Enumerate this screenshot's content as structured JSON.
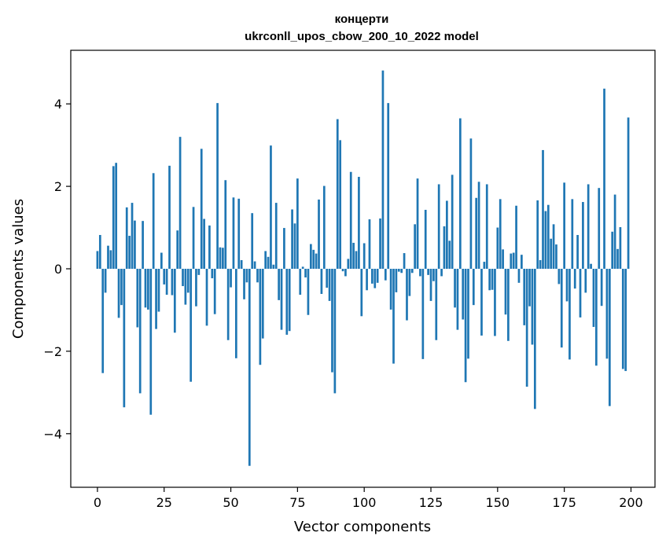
{
  "chart_data": {
    "type": "bar",
    "title": "концерти",
    "subtitle": "ukrconll_upos_cbow_200_10_2022 model",
    "xlabel": "Vector components",
    "ylabel": "Components values",
    "xlim": [
      -10,
      209
    ],
    "ylim": [
      -5.3,
      5.3
    ],
    "xticks": [
      0,
      25,
      50,
      75,
      100,
      125,
      150,
      175,
      200
    ],
    "yticks": [
      -4,
      -2,
      0,
      2,
      4
    ],
    "xtick_labels": [
      "0",
      "25",
      "50",
      "75",
      "100",
      "125",
      "150",
      "175",
      "200"
    ],
    "ytick_labels": [
      "−4",
      "−2",
      "0",
      "2",
      "4"
    ],
    "grid": false,
    "bar_color": "#1f77b4",
    "values": [
      0.43,
      0.82,
      -2.53,
      -0.58,
      0.56,
      0.45,
      2.49,
      2.57,
      -1.19,
      -0.88,
      -3.36,
      1.49,
      0.8,
      1.6,
      1.17,
      -1.42,
      -3.02,
      1.16,
      -0.94,
      -0.99,
      -3.54,
      2.32,
      -1.46,
      -1.04,
      0.39,
      -0.38,
      -0.63,
      2.5,
      -0.64,
      -1.55,
      0.93,
      3.2,
      -0.42,
      -0.87,
      -0.58,
      -2.74,
      1.5,
      -0.91,
      -0.15,
      2.91,
      1.21,
      -1.38,
      1.05,
      -0.23,
      -1.1,
      4.02,
      0.52,
      0.51,
      2.15,
      -1.73,
      -0.45,
      1.73,
      -2.17,
      1.7,
      0.21,
      -0.74,
      -0.33,
      -4.78,
      1.35,
      0.18,
      -0.33,
      -2.33,
      -1.69,
      0.43,
      0.29,
      2.99,
      0.1,
      1.6,
      -0.76,
      -1.48,
      0.99,
      -1.6,
      -1.51,
      1.44,
      1.1,
      2.19,
      -0.63,
      0.05,
      -0.21,
      -1.12,
      0.6,
      0.46,
      0.37,
      1.68,
      -0.61,
      2.01,
      -0.46,
      -0.78,
      -2.51,
      -3.02,
      3.63,
      3.12,
      -0.06,
      -0.18,
      0.24,
      2.35,
      0.63,
      0.43,
      2.23,
      -1.15,
      0.62,
      -0.52,
      1.2,
      -0.36,
      -0.47,
      -0.34,
      1.22,
      4.81,
      -0.28,
      4.02,
      -0.99,
      -2.3,
      -0.57,
      -0.07,
      -0.1,
      0.38,
      -1.25,
      -0.66,
      -0.1,
      1.08,
      2.19,
      -0.18,
      -2.19,
      1.43,
      -0.15,
      -0.78,
      -0.3,
      -1.73,
      2.05,
      -0.18,
      1.03,
      1.65,
      0.68,
      2.28,
      -0.94,
      -1.48,
      3.65,
      -1.23,
      -2.75,
      -2.18,
      3.16,
      -0.88,
      1.72,
      2.11,
      -1.62,
      0.17,
      2.05,
      -0.52,
      -0.51,
      -1.63,
      1.0,
      1.69,
      0.47,
      -1.11,
      -1.75,
      0.37,
      0.39,
      1.53,
      -0.34,
      0.34,
      -1.37,
      -2.86,
      -0.91,
      -1.84,
      -3.4,
      1.66,
      0.21,
      2.88,
      1.4,
      1.55,
      0.73,
      1.08,
      0.59,
      -0.37,
      -1.91,
      2.09,
      -0.79,
      -2.2,
      1.69,
      -0.48,
      0.82,
      -1.18,
      1.62,
      -0.58,
      2.05,
      0.12,
      -1.41,
      -2.35,
      1.96,
      -0.9,
      4.37,
      -2.18,
      -3.33,
      0.9,
      1.8,
      0.48,
      1.01,
      -2.43,
      -2.48,
      3.67
    ]
  }
}
